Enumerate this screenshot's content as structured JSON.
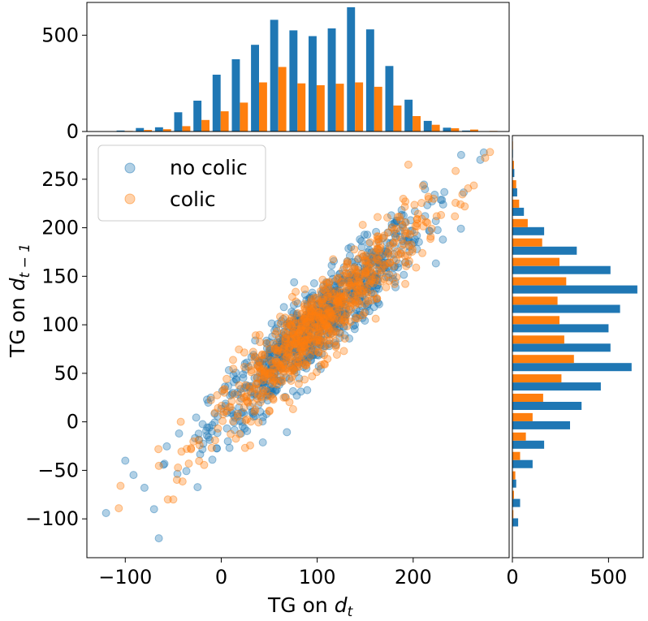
{
  "colors": {
    "no_colic": "#1f77b4",
    "colic": "#ff7f0e"
  },
  "chart_data": [
    {
      "id": "scatter",
      "type": "scatter",
      "xlabel": "TG on d_t",
      "ylabel": "TG on d_{t-1}",
      "xlim": [
        -140,
        300
      ],
      "ylim": [
        -140,
        295
      ],
      "xticks": [
        -100,
        0,
        100,
        200
      ],
      "yticks": [
        -100,
        -50,
        0,
        50,
        100,
        150,
        200,
        250
      ],
      "legend": {
        "position": "upper-left",
        "entries": [
          "no colic",
          "colic"
        ]
      },
      "series": [
        {
          "name": "no colic",
          "color": "#1f77b4",
          "alpha": 0.35,
          "distribution": {
            "n": 900,
            "mean": 100,
            "sd_x": 55,
            "sd_y": 55,
            "corr": 0.93
          },
          "outliers": [
            [
              -120,
              -94
            ],
            [
              -65,
              -120
            ],
            [
              -70,
              -90
            ],
            [
              -100,
              -40
            ],
            [
              270,
              270
            ],
            [
              250,
              275
            ],
            [
              -80,
              -68
            ]
          ]
        },
        {
          "name": "colic",
          "color": "#ff7f0e",
          "alpha": 0.35,
          "distribution": {
            "n": 700,
            "mean": 100,
            "sd_x": 55,
            "sd_y": 55,
            "corr": 0.93
          },
          "outliers": [
            [
              -105,
              -66
            ],
            [
              280,
              278
            ],
            [
              -50,
              -80
            ],
            [
              195,
              265
            ],
            [
              275,
              272
            ]
          ]
        }
      ]
    },
    {
      "id": "top-histogram",
      "type": "bar",
      "orientation": "vertical",
      "x_bin_centers": [
        -100,
        -80,
        -60,
        -40,
        -20,
        0,
        20,
        40,
        60,
        80,
        100,
        120,
        140,
        160,
        180,
        200,
        220,
        240,
        260,
        280
      ],
      "yticks": [
        0,
        500
      ],
      "ylim": [
        0,
        670
      ],
      "series": [
        {
          "name": "no colic",
          "values": [
            5,
            18,
            22,
            100,
            160,
            295,
            375,
            450,
            580,
            525,
            495,
            535,
            645,
            530,
            340,
            165,
            55,
            20,
            5,
            1
          ]
        },
        {
          "name": "colic",
          "values": [
            3,
            8,
            12,
            28,
            60,
            105,
            150,
            255,
            335,
            250,
            240,
            248,
            255,
            232,
            135,
            80,
            35,
            17,
            10,
            3
          ]
        }
      ]
    },
    {
      "id": "right-histogram",
      "type": "bar",
      "orientation": "horizontal",
      "y_bin_centers": [
        -100,
        -80,
        -60,
        -40,
        -20,
        0,
        20,
        40,
        60,
        80,
        100,
        120,
        140,
        160,
        180,
        200,
        220,
        240,
        260,
        280
      ],
      "xticks": [
        0,
        500
      ],
      "xlim": [
        0,
        680
      ],
      "series": [
        {
          "name": "no colic",
          "values": [
            30,
            40,
            20,
            105,
            165,
            300,
            360,
            460,
            620,
            510,
            500,
            560,
            650,
            510,
            335,
            165,
            60,
            25,
            10,
            3
          ]
        },
        {
          "name": "colic",
          "values": [
            5,
            8,
            15,
            40,
            70,
            105,
            160,
            255,
            320,
            270,
            245,
            235,
            280,
            245,
            155,
            80,
            35,
            20,
            8,
            3
          ]
        }
      ]
    }
  ]
}
